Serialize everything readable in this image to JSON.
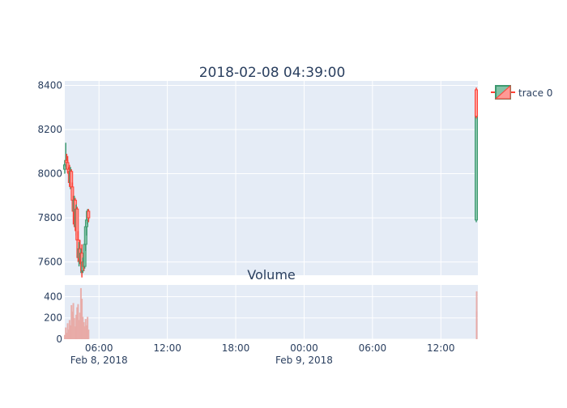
{
  "chart_data": {
    "type": "candlestick",
    "title": "2018-02-08 04:39:00",
    "subplot_title": "Volume",
    "legend": {
      "entries": [
        "trace 0"
      ],
      "placement": "top-right"
    },
    "colors": {
      "plot_bg": "#e5ecf6",
      "grid": "#ffffff",
      "increasing": "#3d9970",
      "increasing_fill": "#82c2a6",
      "decreasing": "#ff4136",
      "decreasing_fill": "#ff9a95",
      "volume": "#e8a9a4",
      "text": "#2a3f5f"
    },
    "x_range": [
      "2018-02-08T03:00:00",
      "2018-02-09T15:15:00"
    ],
    "x_ticks": [
      {
        "t": "2018-02-08T06:00:00",
        "label": "06:00",
        "sub": "Feb 8, 2018"
      },
      {
        "t": "2018-02-08T12:00:00",
        "label": "12:00",
        "sub": ""
      },
      {
        "t": "2018-02-08T18:00:00",
        "label": "18:00",
        "sub": ""
      },
      {
        "t": "2018-02-09T00:00:00",
        "label": "00:00",
        "sub": "Feb 9, 2018"
      },
      {
        "t": "2018-02-09T06:00:00",
        "label": "06:00",
        "sub": ""
      },
      {
        "t": "2018-02-09T12:00:00",
        "label": "12:00",
        "sub": ""
      }
    ],
    "price_axis": {
      "range": [
        7540,
        8420
      ],
      "ticks": [
        7600,
        7800,
        8000,
        8200,
        8400
      ]
    },
    "volume_axis": {
      "range": [
        0,
        510
      ],
      "ticks": [
        0,
        200,
        400
      ]
    },
    "candles": [
      {
        "t": "2018-02-08T03:00:00",
        "o": 8020,
        "h": 8050,
        "l": 8000,
        "c": 8040
      },
      {
        "t": "2018-02-08T03:05:00",
        "o": 8040,
        "h": 8140,
        "l": 8030,
        "c": 8060
      },
      {
        "t": "2018-02-08T03:10:00",
        "o": 8060,
        "h": 8090,
        "l": 8030,
        "c": 8050
      },
      {
        "t": "2018-02-08T03:15:00",
        "o": 8050,
        "h": 8080,
        "l": 8000,
        "c": 8020
      },
      {
        "t": "2018-02-08T03:20:00",
        "o": 8020,
        "h": 8030,
        "l": 7990,
        "c": 8010
      },
      {
        "t": "2018-02-08T03:25:00",
        "o": 8010,
        "h": 8040,
        "l": 7940,
        "c": 7960
      },
      {
        "t": "2018-02-08T03:30:00",
        "o": 7960,
        "h": 8030,
        "l": 7930,
        "c": 8010
      },
      {
        "t": "2018-02-08T03:35:00",
        "o": 8010,
        "h": 8020,
        "l": 7900,
        "c": 7940
      },
      {
        "t": "2018-02-08T03:40:00",
        "o": 7940,
        "h": 7960,
        "l": 7860,
        "c": 7880
      },
      {
        "t": "2018-02-08T03:45:00",
        "o": 7880,
        "h": 7900,
        "l": 7770,
        "c": 7830
      },
      {
        "t": "2018-02-08T03:50:00",
        "o": 7830,
        "h": 7900,
        "l": 7800,
        "c": 7880
      },
      {
        "t": "2018-02-08T03:55:00",
        "o": 7880,
        "h": 7890,
        "l": 7740,
        "c": 7760
      },
      {
        "t": "2018-02-08T04:00:00",
        "o": 7760,
        "h": 7860,
        "l": 7720,
        "c": 7840
      },
      {
        "t": "2018-02-08T04:05:00",
        "o": 7840,
        "h": 7850,
        "l": 7680,
        "c": 7700
      },
      {
        "t": "2018-02-08T04:10:00",
        "o": 7700,
        "h": 7740,
        "l": 7600,
        "c": 7620
      },
      {
        "t": "2018-02-08T04:15:00",
        "o": 7620,
        "h": 7690,
        "l": 7580,
        "c": 7660
      },
      {
        "t": "2018-02-08T04:20:00",
        "o": 7660,
        "h": 7700,
        "l": 7590,
        "c": 7610
      },
      {
        "t": "2018-02-08T04:25:00",
        "o": 7610,
        "h": 7660,
        "l": 7550,
        "c": 7640
      },
      {
        "t": "2018-02-08T04:30:00",
        "o": 7640,
        "h": 7680,
        "l": 7530,
        "c": 7560
      },
      {
        "t": "2018-02-08T04:35:00",
        "o": 7560,
        "h": 7620,
        "l": 7550,
        "c": 7600
      },
      {
        "t": "2018-02-08T04:40:00",
        "o": 7600,
        "h": 7640,
        "l": 7560,
        "c": 7580
      },
      {
        "t": "2018-02-08T04:45:00",
        "o": 7580,
        "h": 7700,
        "l": 7570,
        "c": 7680
      },
      {
        "t": "2018-02-08T04:50:00",
        "o": 7680,
        "h": 7790,
        "l": 7650,
        "c": 7760
      },
      {
        "t": "2018-02-08T04:55:00",
        "o": 7760,
        "h": 7800,
        "l": 7720,
        "c": 7790
      },
      {
        "t": "2018-02-08T05:00:00",
        "o": 7790,
        "h": 7840,
        "l": 7770,
        "c": 7830
      },
      {
        "t": "2018-02-08T05:05:00",
        "o": 7830,
        "h": 7840,
        "l": 7780,
        "c": 7800
      },
      {
        "t": "2018-02-09T15:10:00",
        "o": 7790,
        "h": 8370,
        "l": 7780,
        "c": 8340
      },
      {
        "t": "2018-02-09T15:13:00",
        "o": 8380,
        "h": 8390,
        "l": 8250,
        "c": 8260
      }
    ],
    "volume": [
      {
        "t": "2018-02-08T03:00:00",
        "v": 40
      },
      {
        "t": "2018-02-08T03:05:00",
        "v": 110
      },
      {
        "t": "2018-02-08T03:10:00",
        "v": 60
      },
      {
        "t": "2018-02-08T03:15:00",
        "v": 150
      },
      {
        "t": "2018-02-08T03:20:00",
        "v": 90
      },
      {
        "t": "2018-02-08T03:25:00",
        "v": 180
      },
      {
        "t": "2018-02-08T03:30:00",
        "v": 130
      },
      {
        "t": "2018-02-08T03:35:00",
        "v": 320
      },
      {
        "t": "2018-02-08T03:40:00",
        "v": 260
      },
      {
        "t": "2018-02-08T03:45:00",
        "v": 340
      },
      {
        "t": "2018-02-08T03:50:00",
        "v": 200
      },
      {
        "t": "2018-02-08T03:55:00",
        "v": 120
      },
      {
        "t": "2018-02-08T04:00:00",
        "v": 230
      },
      {
        "t": "2018-02-08T04:05:00",
        "v": 300
      },
      {
        "t": "2018-02-08T04:10:00",
        "v": 330
      },
      {
        "t": "2018-02-08T04:15:00",
        "v": 180
      },
      {
        "t": "2018-02-08T04:20:00",
        "v": 250
      },
      {
        "t": "2018-02-08T04:25:00",
        "v": 480
      },
      {
        "t": "2018-02-08T04:30:00",
        "v": 380
      },
      {
        "t": "2018-02-08T04:35:00",
        "v": 210
      },
      {
        "t": "2018-02-08T04:40:00",
        "v": 160
      },
      {
        "t": "2018-02-08T04:45:00",
        "v": 120
      },
      {
        "t": "2018-02-08T04:50:00",
        "v": 190
      },
      {
        "t": "2018-02-08T04:55:00",
        "v": 130
      },
      {
        "t": "2018-02-08T05:00:00",
        "v": 210
      },
      {
        "t": "2018-02-08T05:05:00",
        "v": 90
      },
      {
        "t": "2018-02-09T15:10:00",
        "v": 260
      },
      {
        "t": "2018-02-09T15:13:00",
        "v": 450
      }
    ]
  }
}
